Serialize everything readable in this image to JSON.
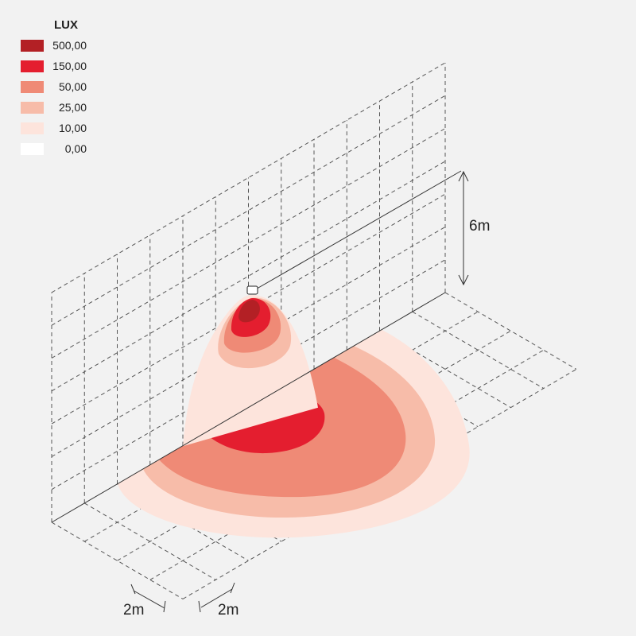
{
  "legend": {
    "title": "LUX",
    "items": [
      {
        "label": "500,00",
        "color": "#b32025"
      },
      {
        "label": "150,00",
        "color": "#e41e2f"
      },
      {
        "label": "50,00",
        "color": "#ef8a76"
      },
      {
        "label": "25,00",
        "color": "#f7bca9"
      },
      {
        "label": "10,00",
        "color": "#fde4dc"
      },
      {
        "label": "0,00",
        "color": "#ffffff"
      }
    ]
  },
  "dimensions": {
    "height": "6m",
    "grid_a": "2m",
    "grid_b": "2m"
  }
}
